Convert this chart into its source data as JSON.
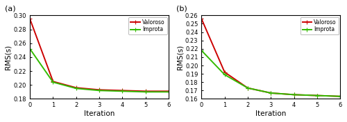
{
  "panel_a": {
    "label": "(a)",
    "iterations": [
      0,
      1,
      2,
      3,
      4,
      5,
      6
    ],
    "valoroso": [
      0.295,
      0.205,
      0.196,
      0.193,
      0.192,
      0.191,
      0.191
    ],
    "improta": [
      0.252,
      0.204,
      0.195,
      0.192,
      0.191,
      0.19,
      0.19
    ],
    "ylim": [
      0.18,
      0.3
    ],
    "yticks": [
      0.18,
      0.2,
      0.22,
      0.24,
      0.26,
      0.28,
      0.3
    ],
    "ylabel": "RMS(s)"
  },
  "panel_b": {
    "label": "(b)",
    "iterations": [
      0,
      1,
      2,
      3,
      4,
      5,
      6
    ],
    "valoroso": [
      0.256,
      0.192,
      0.173,
      0.167,
      0.165,
      0.164,
      0.163
    ],
    "improta": [
      0.218,
      0.189,
      0.173,
      0.167,
      0.165,
      0.164,
      0.163
    ],
    "ylim": [
      0.16,
      0.26
    ],
    "yticks": [
      0.16,
      0.17,
      0.18,
      0.19,
      0.2,
      0.21,
      0.22,
      0.23,
      0.24,
      0.25,
      0.26
    ],
    "ylabel": "RMS(s)"
  },
  "xlabel": "Iteration",
  "valoroso_color": "#cc0000",
  "improta_color": "#33bb00",
  "legend_labels": [
    "Valoroso",
    "Improta"
  ],
  "xlim": [
    0,
    6
  ],
  "xticks": [
    0,
    1,
    2,
    3,
    4,
    5,
    6
  ],
  "bg_color": "#ffffff",
  "linewidth": 1.4,
  "marker": "+",
  "markersize": 5
}
